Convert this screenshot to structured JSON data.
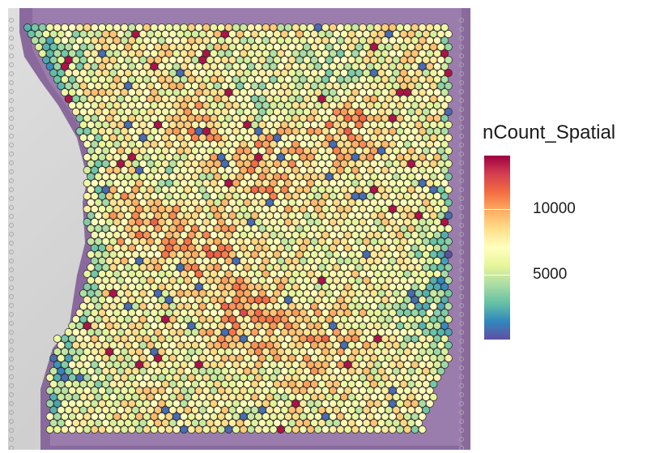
{
  "legend": {
    "title": "nCount_Spatial",
    "ticks": [
      {
        "value": 10000,
        "label": "10000"
      },
      {
        "value": 5000,
        "label": "5000"
      }
    ],
    "min": 500,
    "max": 14500,
    "palette": [
      "#5e4fa2",
      "#3288bd",
      "#66c2a5",
      "#abdda4",
      "#e6f598",
      "#ffffbf",
      "#fee08b",
      "#fdae61",
      "#f46d43",
      "#d53e4f",
      "#9e0142"
    ]
  },
  "image": {
    "description_colors": {
      "tissue": "#8e6fa1",
      "background": "#d9d9d9",
      "spot_outline": "#1a1a1a"
    }
  }
}
